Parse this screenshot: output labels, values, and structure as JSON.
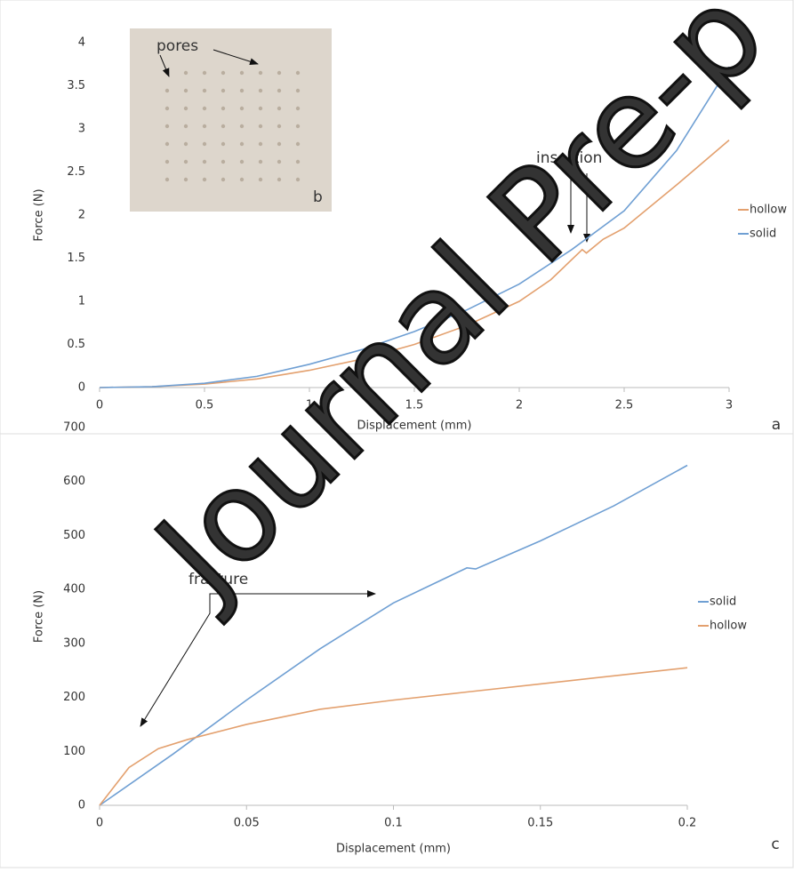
{
  "watermark": "Journal Pre-p",
  "chart_data": [
    {
      "type": "line",
      "panel_label": "a",
      "ylabel": "Force (N)",
      "xlabel": "Displacement (mm)",
      "xlim": [
        0,
        3
      ],
      "xticks": [
        0,
        0.5,
        1,
        1.5,
        2,
        2.5,
        3
      ],
      "ylim": [
        0,
        4
      ],
      "yticks": [
        0,
        0.5,
        1,
        1.5,
        2,
        2.5,
        3,
        3.5,
        4
      ],
      "legend": "right",
      "annotations": [
        "pores",
        "b",
        "insertion"
      ],
      "series": [
        {
          "name": "hollow",
          "color": "#e3a06e",
          "x": [
            0,
            0.25,
            0.5,
            0.75,
            1,
            1.25,
            1.5,
            1.75,
            2,
            2.15,
            2.3,
            2.32,
            2.4,
            2.5,
            2.75,
            3
          ],
          "values": [
            0,
            0.01,
            0.04,
            0.1,
            0.2,
            0.33,
            0.5,
            0.72,
            1.0,
            1.25,
            1.6,
            1.56,
            1.72,
            1.85,
            2.35,
            2.87
          ]
        },
        {
          "name": "solid",
          "color": "#6f9fd3",
          "x": [
            0,
            0.25,
            0.5,
            0.75,
            1,
            1.25,
            1.5,
            1.75,
            2,
            2.25,
            2.5,
            2.75,
            3
          ],
          "values": [
            0,
            0.01,
            0.05,
            0.13,
            0.27,
            0.44,
            0.65,
            0.9,
            1.2,
            1.6,
            2.05,
            2.75,
            3.72
          ]
        }
      ]
    },
    {
      "type": "line",
      "panel_label": "c",
      "ylabel": "Force (N)",
      "xlabel": "Displacement (mm)",
      "xlim": [
        0,
        0.2
      ],
      "xticks": [
        0,
        0.05,
        0.1,
        0.15,
        0.2
      ],
      "ylim": [
        0,
        700
      ],
      "yticks": [
        0,
        100,
        200,
        300,
        400,
        500,
        600,
        700
      ],
      "legend": "right",
      "annotations": [
        "fracture"
      ],
      "series": [
        {
          "name": "solid",
          "color": "#6f9fd3",
          "x": [
            0,
            0.025,
            0.05,
            0.075,
            0.1,
            0.125,
            0.128,
            0.15,
            0.175,
            0.2
          ],
          "values": [
            0,
            95,
            195,
            290,
            375,
            440,
            438,
            490,
            555,
            630
          ]
        },
        {
          "name": "hollow",
          "color": "#e3a06e",
          "x": [
            0,
            0.01,
            0.02,
            0.03,
            0.05,
            0.075,
            0.1,
            0.125,
            0.15,
            0.175,
            0.2
          ],
          "values": [
            0,
            70,
            105,
            122,
            150,
            178,
            195,
            210,
            225,
            240,
            255
          ]
        }
      ]
    }
  ]
}
